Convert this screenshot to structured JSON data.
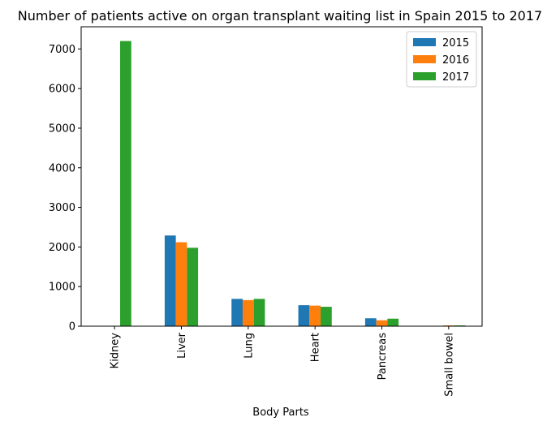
{
  "chart_data": {
    "type": "bar",
    "title": "Number of patients active on organ transplant waiting list in Spain 2015 to 2017",
    "xlabel": "Body Parts",
    "ylabel": "",
    "categories": [
      "Kidney",
      "Liver",
      "Lung",
      "Heart",
      "Pancreas",
      "Small bowel"
    ],
    "series": [
      {
        "name": "2015",
        "color": "#1f77b4",
        "values": [
          0,
          2290,
          690,
          530,
          200,
          0
        ]
      },
      {
        "name": "2016",
        "color": "#ff7f0e",
        "values": [
          0,
          2120,
          660,
          520,
          150,
          20
        ]
      },
      {
        "name": "2017",
        "color": "#2ca02c",
        "values": [
          7200,
          1980,
          690,
          490,
          190,
          20
        ]
      }
    ],
    "ylim": [
      0,
      7560
    ],
    "yticks": [
      0,
      1000,
      2000,
      3000,
      4000,
      5000,
      6000,
      7000
    ],
    "grid": false,
    "legend": "top-right"
  }
}
